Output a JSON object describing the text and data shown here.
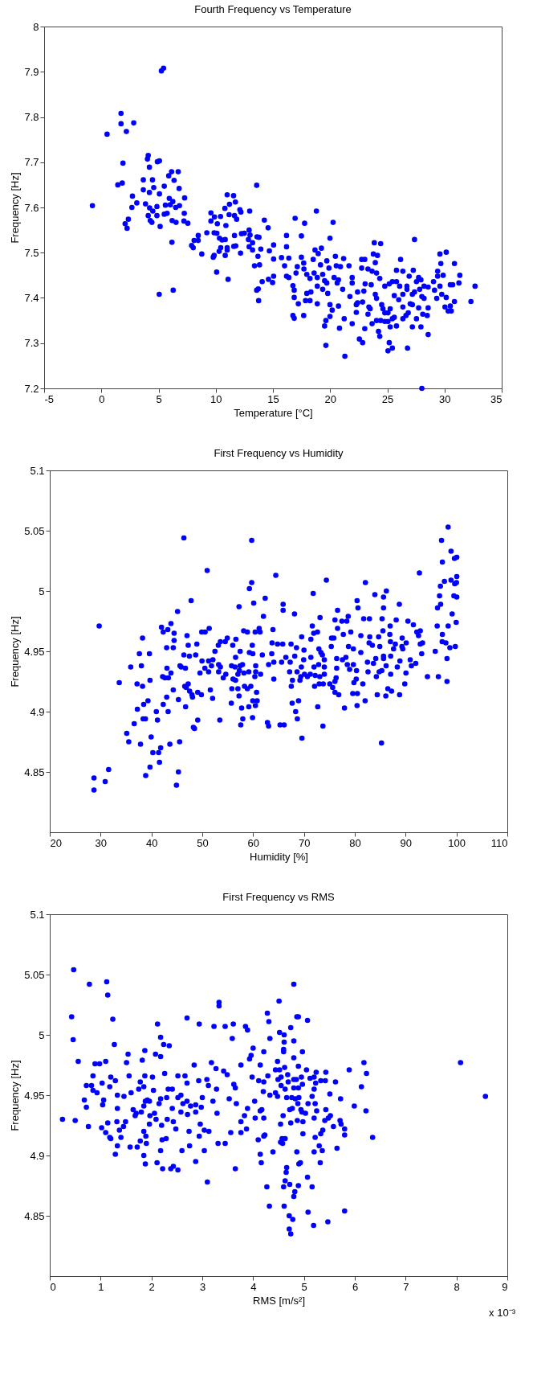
{
  "chart_data": [
    {
      "type": "scatter",
      "title": "Fourth Frequency vs Temperature",
      "xlabel": "Temperature [°C]",
      "ylabel": "Frequency [Hz]",
      "color": "#0000ff",
      "marker": "circle",
      "xlim": [
        -5,
        35
      ],
      "xticks": [
        -5,
        0,
        5,
        10,
        15,
        20,
        25,
        30,
        35
      ],
      "ylim": [
        7.2,
        8
      ],
      "yticks": [
        7.2,
        7.3,
        7.4,
        7.5,
        7.6,
        7.7,
        7.8,
        7.9,
        8
      ],
      "x": [
        -0.78,
        0.5,
        1.72,
        1.72,
        2.19,
        2.83,
        1.89,
        1.44,
        1.83,
        2.72,
        2.67,
        3.1,
        2.36,
        2.08,
        2.25,
        4.1,
        4.03,
        4.2,
        4.9,
        5.08,
        5.25,
        5.44,
        3.67,
        4.47,
        6.14,
        6.72,
        5.89,
        6.36,
        6.8,
        3.67,
        4.58,
        5.5,
        4.2,
        5.08,
        7.28,
        3.86,
        5.94,
        6.25,
        4.22,
        4.86,
        5.6,
        6.03,
        6.83,
        6.5,
        4.5,
        4.1,
        4.86,
        5.5,
        5.75,
        7.25,
        4.28,
        4.42,
        5.14,
        6.19,
        6.53,
        7.22,
        7.56,
        6.17,
        5.06,
        6.28,
        7.89,
        8.03,
        8.11,
        8.47,
        8.78,
        8.47,
        9.22,
        9.58,
        9.58,
        9.89,
        10.14,
        9.86,
        10.1,
        10.42,
        10.8,
        11.0,
        11.56,
        11.2,
        11.72,
        11.17,
        11.64,
        12.11,
        12.2,
        11.83,
        10.89,
        11.64,
        10.83,
        10.33,
        10.56,
        9.86,
        9.78,
        10.44,
        10.3,
        10.83,
        11.0,
        11.0,
        11.58,
        11.75,
        12.17,
        10.08,
        11.08,
        12.97,
        12.25,
        12.5,
        12.92,
        13.0,
        12.86,
        13.22,
        13.61,
        13.78,
        13.58,
        12.92,
        13.22,
        13.94,
        14.25,
        14.58,
        13.69,
        13.39,
        13.83,
        15.06,
        14.69,
        15.06,
        14.06,
        14.61,
        14.97,
        15.06,
        13.58,
        13.72,
        13.75,
        16.19,
        16.19,
        15.75,
        16.39,
        16.02,
        16.19,
        16.39,
        16.94,
        17.77,
        17.49,
        16.75,
        16.86,
        16.86,
        16.75,
        16.86,
        17.69,
        17.22,
        17.13,
        17.69,
        17.49,
        17.71,
        17.02,
        18.8,
        20.26,
        19.99,
        18.68,
        19.24,
        18.96,
        18.52,
        19.16,
        19.71,
        19.9,
        20.46,
        20.9,
        21.18,
        21.65,
        20.54,
        17.96,
        18.24,
        18.6,
        18.88,
        19.35,
        19.52,
        20.35,
        20.73,
        20.62,
        19.71,
        18.88,
        19.35,
        19.79,
        18.32,
        17.96,
        17.85,
        18.24,
        18.88,
        19.99,
        20.18,
        20.73,
        19.63,
        19.99,
        19.52,
        20.82,
        21.23,
        19.63,
        21.29,
        21.93,
        21.93,
        21.1,
        21.73,
        22.4,
        22.95,
        22.4,
        22.29,
        22.84,
        21.93,
        22.29,
        22.76,
        23.03,
        22.76,
        23.31,
        23.78,
        23.86,
        24.42,
        24.14,
        23.95,
        23.67,
        24.06,
        23.59,
        24.34,
        23.06,
        23.95,
        24.06,
        23.39,
        23.5,
        23.31,
        23.03,
        22.56,
        22.84,
        23.67,
        24.23,
        24.34,
        24.06,
        24.42,
        24.51,
        24.62,
        24.78,
        25.06,
        25.25,
        24.78,
        25.06,
        25.44,
        25.61,
        25.25,
        25.8,
        25.17,
        25.44,
        25.06,
        24.78,
        25.17,
        25.44,
        25.8,
        26.08,
        25.61,
        26.0,
        26.36,
        26.36,
        26.36,
        25.8,
        26.36,
        26.16,
        26.77,
        26.91,
        26.72,
        26.72,
        27.19,
        27.38,
        27.27,
        27.38,
        27.55,
        27.74,
        27.94,
        27.83,
        27.0,
        27.19,
        27.74,
        26.83,
        26.63,
        27.55,
        27.19,
        27.94,
        28.1,
        28.49,
        28.57,
        28.57,
        28.02,
        28.21,
        28.21,
        28.57,
        28.02,
        29.04,
        29.13,
        29.4,
        29.4,
        29.6,
        29.68,
        29.88,
        29.6,
        29.32,
        29.76,
        30.15,
        30.15,
        30.04,
        30.32,
        30.51,
        30.71,
        30.51,
        30.59,
        30.87,
        30.87,
        31.34,
        31.26,
        32.31,
        32.67
      ],
      "values": [
        7.604,
        7.762,
        7.808,
        7.785,
        7.768,
        7.787,
        7.698,
        7.65,
        7.654,
        7.625,
        7.6,
        7.61,
        7.574,
        7.564,
        7.554,
        7.715,
        7.707,
        7.689,
        7.701,
        7.703,
        7.902,
        7.908,
        7.661,
        7.661,
        7.679,
        7.679,
        7.67,
        7.66,
        7.642,
        7.639,
        7.644,
        7.647,
        7.633,
        7.63,
        7.621,
        7.608,
        7.62,
        7.613,
        7.599,
        7.602,
        7.605,
        7.606,
        7.604,
        7.6,
        7.592,
        7.582,
        7.582,
        7.585,
        7.587,
        7.587,
        7.571,
        7.567,
        7.558,
        7.571,
        7.567,
        7.57,
        7.565,
        7.523,
        7.408,
        7.417,
        7.516,
        7.511,
        7.527,
        7.538,
        7.497,
        7.527,
        7.544,
        7.588,
        7.57,
        7.579,
        7.564,
        7.544,
        7.543,
        7.58,
        7.598,
        7.628,
        7.626,
        7.607,
        7.612,
        7.584,
        7.582,
        7.595,
        7.59,
        7.574,
        7.56,
        7.538,
        7.529,
        7.532,
        7.528,
        7.494,
        7.49,
        7.511,
        7.503,
        7.494,
        7.511,
        7.506,
        7.514,
        7.515,
        7.499,
        7.457,
        7.441,
        7.592,
        7.542,
        7.543,
        7.55,
        7.539,
        7.529,
        7.522,
        7.535,
        7.534,
        7.649,
        7.513,
        7.506,
        7.508,
        7.572,
        7.555,
        7.492,
        7.471,
        7.473,
        7.517,
        7.504,
        7.486,
        7.436,
        7.441,
        7.434,
        7.448,
        7.417,
        7.42,
        7.394,
        7.538,
        7.513,
        7.489,
        7.488,
        7.471,
        7.448,
        7.445,
        7.576,
        7.565,
        7.537,
        7.427,
        7.417,
        7.401,
        7.361,
        7.355,
        7.361,
        7.387,
        7.469,
        7.477,
        7.49,
        7.464,
        7.455,
        7.592,
        7.567,
        7.532,
        7.506,
        7.51,
        7.498,
        7.485,
        7.473,
        7.482,
        7.466,
        7.492,
        7.469,
        7.487,
        7.471,
        7.471,
        7.452,
        7.443,
        7.455,
        7.445,
        7.452,
        7.438,
        7.445,
        7.44,
        7.433,
        7.433,
        7.426,
        7.419,
        7.41,
        7.413,
        7.41,
        7.394,
        7.394,
        7.387,
        7.385,
        7.373,
        7.382,
        7.35,
        7.359,
        7.338,
        7.333,
        7.354,
        7.295,
        7.271,
        7.445,
        7.433,
        7.419,
        7.403,
        7.413,
        7.415,
        7.389,
        7.385,
        7.391,
        7.343,
        7.368,
        7.485,
        7.485,
        7.466,
        7.464,
        7.497,
        7.522,
        7.52,
        7.494,
        7.478,
        7.459,
        7.455,
        7.429,
        7.443,
        7.431,
        7.408,
        7.399,
        7.38,
        7.376,
        7.364,
        7.332,
        7.309,
        7.301,
        7.343,
        7.326,
        7.315,
        7.35,
        7.35,
        7.385,
        7.376,
        7.367,
        7.367,
        7.376,
        7.348,
        7.348,
        7.354,
        7.357,
        7.336,
        7.338,
        7.301,
        7.289,
        7.283,
        7.426,
        7.431,
        7.436,
        7.436,
        7.426,
        7.405,
        7.396,
        7.408,
        7.38,
        7.354,
        7.461,
        7.459,
        7.485,
        7.289,
        7.448,
        7.426,
        7.419,
        7.408,
        7.413,
        7.461,
        7.529,
        7.436,
        7.445,
        7.44,
        7.419,
        7.387,
        7.385,
        7.378,
        7.367,
        7.361,
        7.354,
        7.336,
        7.336,
        7.364,
        7.361,
        7.378,
        7.319,
        7.403,
        7.399,
        7.426,
        7.424,
        7.2,
        7.436,
        7.417,
        7.448,
        7.459,
        7.497,
        7.476,
        7.45,
        7.426,
        7.399,
        7.408,
        7.501,
        7.401,
        7.38,
        7.371,
        7.429,
        7.429,
        7.382,
        7.371,
        7.476,
        7.392,
        7.45,
        7.433,
        7.392,
        7.426
      ]
    },
    {
      "type": "scatter",
      "title": "First Frequency vs Humidity",
      "xlabel": "Humidity [%]",
      "ylabel": "Frequency [Hz]",
      "color": "#0000ff",
      "marker": "circle",
      "xlim": [
        20,
        110
      ],
      "xticks": [
        20,
        30,
        40,
        50,
        60,
        70,
        80,
        90,
        100,
        110
      ],
      "ylim": [
        4.8,
        5.1
      ],
      "yticks": [
        4.85,
        4.9,
        4.95,
        5,
        5.05,
        5.1
      ],
      "x": [
        46.38,
        59.72,
        50.96,
        64.46,
        59.72,
        59.27,
        47.8,
        62.37,
        60.11,
        57.23,
        45.14,
        62.03,
        29.72,
        41.98,
        43.84,
        43.22,
        42.32,
        44.46,
        49.89,
        50.56,
        51.36,
        58.14,
        58.87,
        60.4,
        61.36,
        61.19,
        63.9,
        38.25,
        47.0,
        44.46,
        42.99,
        44.29,
        47.23,
        48.93,
        54.92,
        54.52,
        53.56,
        53.16,
        56.61,
        55.99,
        57.45,
        52.49,
        59.83,
        59.27,
        59.94,
        64.8,
        63.73,
        63.67,
        61.81,
        37.63,
        39.6,
        46.38,
        47.46,
        48.7,
        56.55,
        35.93,
        38.02,
        43.05,
        45.62,
        45.85,
        46.69,
        49.94,
        50.51,
        49.55,
        51.24,
        52.09,
        51.81,
        51.24,
        53.22,
        53.56,
        53.22,
        54.63,
        54.12,
        55.76,
        56.44,
        57.45,
        57.91,
        57.29,
        57.01,
        58.19,
        59.15,
        60.51,
        60.51,
        61.47,
        63.05,
        64.07,
        64.07,
        60.34,
        56.05,
        56.55,
        55.82,
        57.01,
        58.31,
        58.87,
        59.55,
        60.68,
        57.23,
        55.71,
        57.74,
        59.15,
        59.94,
        60.79,
        60.45,
        57.97,
        57.57,
        59.89,
        62.82,
        63.05,
        53.45,
        33.67,
        37.17,
        38.25,
        39.72,
        42.2,
        42.66,
        43.33,
        43.84,
        44.29,
        45.31,
        46.55,
        46.84,
        47.23,
        47.51,
        47.97,
        48.08,
        49.1,
        49.83,
        51.58,
        52.03,
        46.72,
        43.0,
        42.32,
        43.28,
        39.32,
        38.47,
        37.23,
        40.96,
        38.36,
        38.81,
        41.19,
        36.61,
        35.14,
        35.54,
        37.85,
        39.94,
        40.28,
        41.41,
        41.81,
        43.62,
        45.54,
        49.1,
        48.25,
        48.47,
        41.58,
        39.72,
        38.87,
        45.31,
        44.92,
        31.58,
        28.7,
        30.9,
        28.7,
        65.9,
        65.9,
        65.82,
        65.6,
        66.44,
        66.1,
        65.3,
        68.14,
        67.46,
        67.29,
        67.18,
        67.74,
        67.51,
        68.53,
        68.19,
        68.64,
        67.68,
        68.93,
        68.36,
        68.7,
        69.6,
        69.55,
        70.0,
        69.94,
        69.49,
        69.38,
        69.21,
        70.11,
        70.68,
        71.36,
        71.92,
        71.64,
        71.81,
        72.66,
        71.36,
        71.98,
        71.24,
        72.2,
        72.09,
        72.71,
        73.16,
        72.94,
        73.33,
        73.62,
        72.88,
        73.11,
        74.0,
        74.0,
        74.0,
        73.79,
        73.0,
        73.73,
        74.41,
        75.42,
        75.37,
        75.08,
        75.65,
        76.1,
        76.1,
        76.84,
        76.61,
        76.1,
        76.61,
        75.88,
        76.44,
        76.44,
        76.33,
        77.46,
        77.74,
        77.57,
        78.25,
        77.97,
        78.53,
        78.42,
        78.7,
        78.76,
        78.98,
        79.21,
        79.72,
        79.72,
        79.83,
        79.6,
        80.34,
        80.28,
        80.51,
        80.45,
        80.45,
        80.62,
        81.19,
        81.19,
        81.58,
        81.75,
        82.09,
        82.03,
        82.49,
        82.6,
        82.88,
        82.94,
        82.82,
        83.45,
        83.67,
        83.95,
        84.12,
        84.24,
        84.41,
        84.69,
        84.92,
        84.8,
        85.25,
        85.31,
        85.37,
        85.65,
        85.65,
        86.21,
        85.54,
        85.65,
        85.65,
        86.16,
        86.1,
        86.5,
        86.89,
        86.95,
        87.23,
        87.01,
        87.06,
        87.06,
        87.63,
        88.14,
        87.97,
        88.36,
        88.76,
        88.87,
        88.81,
        89.27,
        89.32,
        89.43,
        89.83,
        90.06,
        90.11,
        90.45,
        90.9,
        91.13,
        91.53,
        91.98,
        92.2,
        92.54,
        92.71,
        92.88,
        92.88,
        93.33,
        93.16,
        94.29,
        95.82,
        96.27,
        96.21,
        96.44,
        96.67,
        96.89,
        96.84,
        97.06,
        97.23,
        97.23,
        97.18,
        97.63,
        97.91,
        98.14,
        98.14,
        98.36,
        98.36,
        98.7,
        98.93,
        98.93,
        99.15,
        99.6,
        100.06,
        99.49,
        100.06,
        99.66,
        100.06,
        100.0,
        99.94,
        99.77
      ],
      "values": [
        5.044,
        5.042,
        5.017,
        5.013,
        5.007,
        5.002,
        4.992,
        4.994,
        4.99,
        4.987,
        4.983,
        4.979,
        4.971,
        4.97,
        4.973,
        4.968,
        4.966,
        4.965,
        4.966,
        4.966,
        4.969,
        4.967,
        4.966,
        4.966,
        4.966,
        4.969,
        4.968,
        4.961,
        4.963,
        4.959,
        4.953,
        4.953,
        4.955,
        4.956,
        4.961,
        4.958,
        4.958,
        4.955,
        4.96,
        4.955,
        4.95,
        4.95,
        4.955,
        4.949,
        4.948,
        4.956,
        4.957,
        4.948,
        4.947,
        4.948,
        4.948,
        4.947,
        4.946,
        4.947,
        4.945,
        4.937,
        4.938,
        4.936,
        4.938,
        4.937,
        4.936,
        4.942,
        4.936,
        4.932,
        4.942,
        4.943,
        4.938,
        4.933,
        4.939,
        4.937,
        4.933,
        4.931,
        4.928,
        4.938,
        4.937,
        4.938,
        4.939,
        4.934,
        4.931,
        4.932,
        4.933,
        4.938,
        4.933,
        4.931,
        4.939,
        4.941,
        4.927,
        4.929,
        4.927,
        4.926,
        4.919,
        4.919,
        4.921,
        4.919,
        4.921,
        4.916,
        4.913,
        4.907,
        4.903,
        4.904,
        4.909,
        4.909,
        4.905,
        4.894,
        4.889,
        4.895,
        4.891,
        4.888,
        4.893,
        4.924,
        4.923,
        4.921,
        4.926,
        4.929,
        4.928,
        4.928,
        4.932,
        4.918,
        4.91,
        4.921,
        4.92,
        4.923,
        4.917,
        4.914,
        4.912,
        4.916,
        4.914,
        4.918,
        4.911,
        4.904,
        4.912,
        4.906,
        4.9,
        4.909,
        4.906,
        4.902,
        4.9,
        4.894,
        4.894,
        4.893,
        4.89,
        4.882,
        4.875,
        4.873,
        4.879,
        4.866,
        4.866,
        4.87,
        4.873,
        4.875,
        4.893,
        4.887,
        4.886,
        4.858,
        4.854,
        4.847,
        4.85,
        4.839,
        4.852,
        4.845,
        4.842,
        4.835,
        4.989,
        4.984,
        4.956,
        4.941,
        4.945,
        4.889,
        4.889,
        4.981,
        4.956,
        4.941,
        4.933,
        4.926,
        4.921,
        4.953,
        4.946,
        4.933,
        4.907,
        4.909,
        4.9,
        4.894,
        4.878,
        4.962,
        4.951,
        4.943,
        4.937,
        4.929,
        4.926,
        4.931,
        4.929,
        4.96,
        4.965,
        4.971,
        4.998,
        4.966,
        4.945,
        4.937,
        4.931,
        4.93,
        4.921,
        4.904,
        4.978,
        4.952,
        4.949,
        4.947,
        4.939,
        4.929,
        4.943,
        4.937,
        4.931,
        4.923,
        4.923,
        4.888,
        5.009,
        4.961,
        4.954,
        4.923,
        4.92,
        4.925,
        4.916,
        4.914,
        4.984,
        4.976,
        4.969,
        4.961,
        4.944,
        4.936,
        4.928,
        4.975,
        4.964,
        4.943,
        4.945,
        4.903,
        4.939,
        4.975,
        4.979,
        4.954,
        4.935,
        4.966,
        4.952,
        4.939,
        4.924,
        4.915,
        4.934,
        4.927,
        4.915,
        4.905,
        4.992,
        4.986,
        4.963,
        4.949,
        4.923,
        4.977,
        5.007,
        4.909,
        4.941,
        4.933,
        4.977,
        4.962,
        4.957,
        4.955,
        4.94,
        4.997,
        4.944,
        4.929,
        4.914,
        4.962,
        4.954,
        4.933,
        4.874,
        4.934,
        4.977,
        4.986,
        4.995,
        5.0,
        4.967,
        4.946,
        4.944,
        4.938,
        4.913,
        4.919,
        4.964,
        4.971,
        4.917,
        4.958,
        4.946,
        4.931,
        4.952,
        4.976,
        4.956,
        4.937,
        4.989,
        4.942,
        4.914,
        4.954,
        4.961,
        4.952,
        4.923,
        4.932,
        4.957,
        4.975,
        4.943,
        4.938,
        4.972,
        4.94,
        4.966,
        4.963,
        5.015,
        4.967,
        4.956,
        4.957,
        4.948,
        4.929,
        4.95,
        4.986,
        4.971,
        4.929,
        4.996,
        4.989,
        5.004,
        5.042,
        5.024,
        4.964,
        4.958,
        5.008,
        4.957,
        4.944,
        4.925,
        5.053,
        4.971,
        4.953,
        5.033,
        5.009,
        4.981,
        5.027,
        5.028,
        4.996,
        4.995,
        5.006,
        5.012,
        5.007,
        4.974,
        4.954
      ]
    },
    {
      "type": "scatter",
      "title": "First Frequency vs RMS",
      "xlabel": "RMS [m/s²]",
      "ylabel": "Frequency [Hz]",
      "color": "#0000ff",
      "marker": "circle",
      "annotations": [
        "x 10⁻³"
      ],
      "xlim": [
        0,
        9
      ],
      "xticks": [
        0,
        1,
        2,
        3,
        4,
        5,
        6,
        7,
        8,
        9
      ],
      "ylim": [
        4.8,
        5.1
      ],
      "yticks": [
        4.85,
        4.9,
        4.95,
        5,
        5.05,
        5.1
      ],
      "x": [
        0.47,
        0.78,
        1.12,
        1.14,
        0.43,
        1.24,
        0.46,
        1.27,
        0.56,
        0.89,
        0.98,
        1.1,
        0.25,
        0.5,
        0.68,
        0.72,
        0.72,
        0.82,
        0.85,
        0.85,
        0.93,
        1.03,
        1.06,
        1.04,
        0.76,
        1.02,
        1.1,
        1.14,
        1.18,
        1.2,
        1.29,
        1.33,
        1.33,
        1.18,
        1.2,
        1.32,
        1.37,
        1.33,
        1.29,
        1.4,
        1.45,
        1.49,
        1.46,
        1.51,
        1.54,
        1.56,
        1.6,
        1.58,
        1.64,
        1.68,
        1.7,
        1.72,
        1.78,
        1.75,
        1.78,
        1.82,
        1.87,
        1.87,
        1.85,
        1.8,
        1.85,
        1.88,
        1.85,
        1.89,
        1.9,
        1.85,
        1.88,
        1.92,
        1.96,
        1.97,
        1.96,
        2.02,
        2.04,
        2.06,
        2.09,
        2.08,
        2.12,
        2.11,
        2.15,
        2.18,
        2.18,
        2.18,
        2.24,
        2.35,
        2.26,
        2.2,
        2.21,
        2.18,
        2.22,
        2.3,
        2.33,
        2.41,
        2.31,
        2.29,
        2.38,
        2.43,
        2.52,
        2.41,
        2.43,
        2.48,
        2.52,
        2.52,
        2.58,
        2.58,
        2.6,
        2.62,
        2.66,
        2.7,
        2.7,
        2.7,
        2.71,
        2.74,
        2.75,
        2.77,
        2.84,
        2.87,
        2.87,
        2.87,
        2.93,
        2.94,
        2.96,
        2.94,
        2.98,
        3.0,
        3.04,
        3.04,
        3.1,
        3.09,
        3.12,
        3.13,
        3.18,
        3.21,
        3.23,
        3.27,
        3.28,
        3.29,
        3.31,
        3.33,
        3.33,
        3.42,
        3.45,
        3.45,
        3.49,
        3.53,
        3.56,
        3.59,
        3.61,
        3.62,
        3.65,
        3.67,
        3.65,
        3.76,
        3.76,
        3.76,
        3.85,
        3.89,
        3.83,
        3.87,
        3.89,
        3.93,
        3.96,
        4.0,
        3.98,
        4.03,
        4.04,
        4.1,
        4.14,
        4.16,
        4.21,
        4.14,
        4.11,
        4.17,
        4.23,
        4.28,
        4.31,
        4.33,
        4.27,
        4.32,
        4.39,
        4.29,
        4.21,
        4.2,
        4.33,
        4.14,
        4.21,
        4.21,
        4.51,
        4.8,
        4.86,
        4.89,
        5.07,
        4.74,
        4.52,
        4.61,
        4.61,
        4.8,
        4.6,
        4.6,
        4.97,
        4.8,
        4.48,
        4.89,
        5.05,
        4.44,
        4.62,
        4.52,
        4.68,
        4.55,
        4.49,
        4.69,
        4.8,
        4.85,
        4.95,
        4.97,
        4.89,
        4.55,
        4.63,
        4.8,
        5.12,
        5.24,
        5.2,
        5.23,
        5.2,
        5.33,
        5.42,
        5.43,
        5.62,
        5.89,
        6.18,
        6.23,
        6.13,
        8.08,
        8.57,
        4.44,
        4.48,
        4.66,
        4.76,
        4.83,
        4.9,
        4.72,
        4.77,
        4.88,
        4.94,
        4.96,
        5.03,
        5.08,
        5.16,
        5.22,
        5.25,
        5.2,
        5.43,
        5.51,
        5.72,
        5.99,
        6.22,
        5.52,
        5.48,
        5.41,
        5.37,
        5.58,
        5.71,
        5.73,
        5.8,
        5.8,
        6.35,
        4.59,
        4.54,
        4.74,
        4.87,
        4.98,
        4.98,
        5.33,
        5.22,
        4.57,
        4.63,
        4.54,
        4.58,
        4.86,
        5.3,
        5.36,
        5.65,
        5.2,
        5.32,
        4.9,
        4.93,
        4.66,
        4.65,
        4.63,
        4.6,
        4.72,
        4.89,
        4.82,
        4.8,
        5.07,
        5.16,
        4.61,
        4.71,
        4.78,
        5.08,
        5.19,
        5.47,
        5.8,
        4.71,
        4.74
      ],
      "values": [
        5.054,
        5.042,
        5.044,
        5.033,
        5.015,
        5.013,
        4.996,
        4.992,
        4.978,
        4.976,
        4.976,
        4.978,
        4.93,
        4.929,
        4.946,
        4.94,
        4.958,
        4.958,
        4.966,
        4.954,
        4.952,
        4.96,
        4.946,
        4.942,
        4.924,
        4.923,
        4.919,
        4.927,
        4.957,
        4.965,
        4.962,
        4.95,
        4.939,
        4.915,
        4.914,
        4.928,
        4.921,
        4.908,
        4.901,
        4.915,
        4.924,
        4.928,
        4.949,
        4.977,
        4.984,
        4.966,
        4.952,
        4.907,
        4.938,
        4.933,
        4.935,
        4.907,
        4.912,
        4.955,
        4.961,
        4.979,
        4.987,
        4.966,
        4.957,
        4.936,
        4.941,
        4.945,
        4.92,
        4.916,
        4.91,
        4.9,
        4.893,
        4.946,
        4.945,
        4.933,
        4.926,
        4.965,
        4.954,
        4.935,
        4.93,
        4.984,
        5.009,
        4.894,
        4.943,
        4.947,
        4.998,
        4.982,
        4.992,
        4.991,
        4.968,
        4.925,
        4.913,
        4.904,
        4.889,
        4.948,
        4.955,
        4.955,
        4.93,
        4.914,
        4.889,
        4.891,
        4.888,
        4.939,
        4.928,
        4.922,
        4.966,
        4.948,
        4.95,
        4.936,
        4.904,
        4.943,
        4.966,
        4.96,
        5.014,
        4.945,
        4.934,
        4.92,
        4.908,
        4.941,
        4.975,
        4.936,
        4.895,
        4.942,
        4.962,
        5.009,
        4.926,
        4.916,
        4.94,
        4.948,
        4.921,
        4.904,
        4.878,
        4.963,
        4.958,
        4.92,
        4.977,
        4.945,
        5.007,
        4.972,
        4.955,
        4.935,
        4.91,
        5.027,
        5.024,
        4.97,
        5.007,
        4.91,
        4.967,
        4.947,
        4.919,
        4.997,
        5.009,
        4.959,
        4.956,
        4.943,
        4.889,
        4.975,
        4.928,
        4.919,
        5.007,
        5.004,
        4.933,
        4.922,
        4.939,
        4.98,
        4.983,
        4.989,
        4.965,
        4.945,
        4.931,
        4.913,
        4.901,
        4.894,
        4.986,
        4.975,
        4.962,
        4.938,
        4.917,
        5.018,
        5.011,
        4.997,
        4.874,
        4.858,
        4.903,
        4.966,
        4.961,
        4.953,
        4.95,
        4.937,
        4.931,
        4.916,
        5.028,
        5.042,
        5.015,
        5.015,
        5.012,
        5.006,
        5.002,
        5.0,
        4.994,
        4.995,
        4.988,
        4.986,
        4.986,
        4.981,
        4.978,
        4.974,
        4.971,
        4.971,
        4.973,
        4.971,
        4.967,
        4.965,
        4.963,
        4.961,
        4.963,
        4.963,
        4.965,
        4.959,
        4.956,
        4.958,
        4.955,
        4.956,
        4.964,
        4.969,
        4.965,
        4.96,
        4.955,
        4.962,
        4.962,
        4.969,
        4.961,
        4.971,
        4.977,
        4.968,
        4.957,
        4.977,
        4.949,
        4.952,
        4.949,
        4.948,
        4.948,
        4.947,
        4.948,
        4.938,
        4.939,
        4.943,
        4.938,
        4.936,
        4.935,
        4.943,
        4.949,
        4.943,
        4.937,
        4.931,
        4.938,
        4.951,
        4.947,
        4.941,
        4.937,
        4.933,
        4.931,
        4.929,
        4.921,
        4.924,
        4.929,
        4.926,
        4.922,
        4.917,
        4.915,
        4.933,
        4.926,
        4.927,
        4.929,
        4.928,
        4.918,
        4.918,
        4.915,
        4.914,
        4.914,
        4.911,
        4.91,
        4.903,
        4.908,
        4.904,
        4.906,
        4.903,
        4.894,
        4.893,
        4.894,
        4.89,
        4.886,
        4.879,
        4.874,
        4.876,
        4.875,
        4.87,
        4.866,
        4.882,
        4.874,
        4.858,
        4.85,
        4.847,
        4.853,
        4.842,
        4.845,
        4.854,
        4.839,
        4.835
      ]
    }
  ]
}
